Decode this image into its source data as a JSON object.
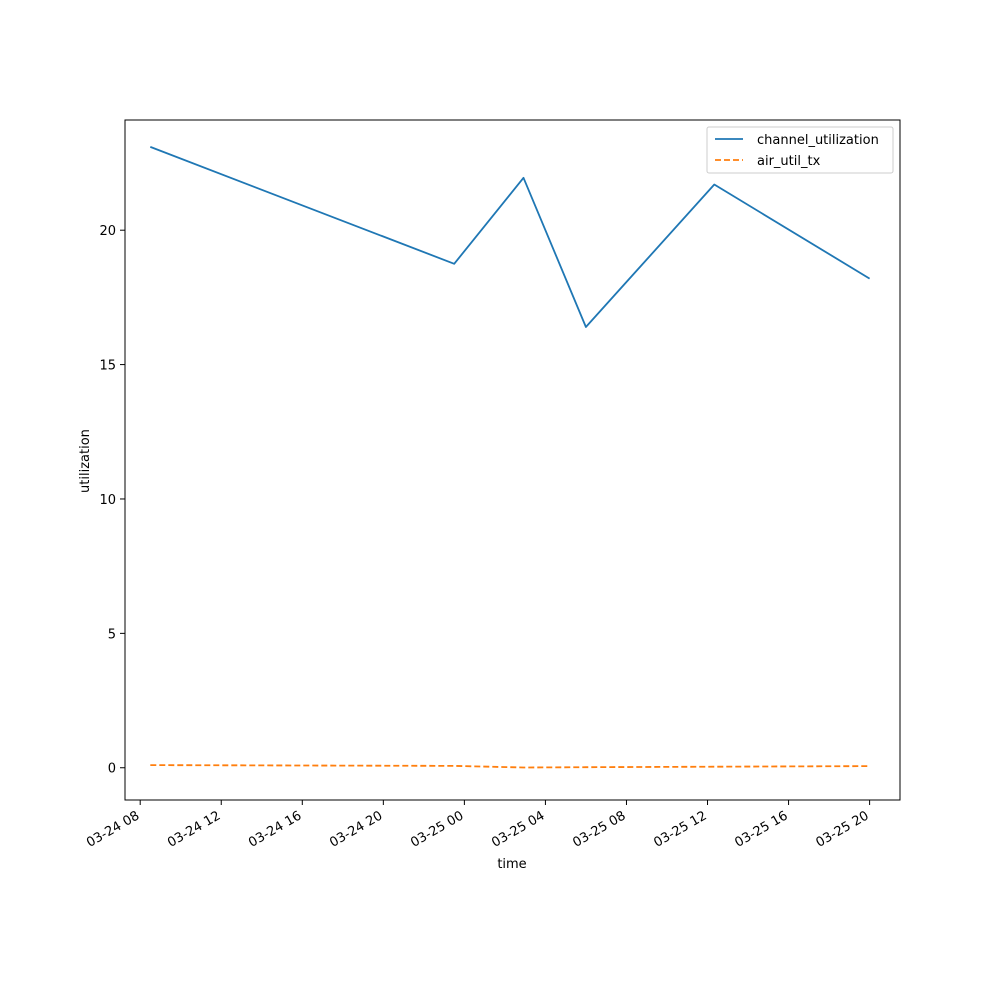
{
  "chart_data": {
    "type": "line",
    "xlabel": "time",
    "ylabel": "utilization",
    "x_axis_type": "datetime",
    "xlim": [
      "2024-03-24T07:15",
      "2024-03-25T21:30"
    ],
    "ylim": [
      -1.2,
      24.1
    ],
    "yticks": [
      0,
      5,
      10,
      15,
      20
    ],
    "xticks": [
      {
        "t": "2024-03-24T08:00",
        "label": "03-24 08"
      },
      {
        "t": "2024-03-24T12:00",
        "label": "03-24 12"
      },
      {
        "t": "2024-03-24T16:00",
        "label": "03-24 16"
      },
      {
        "t": "2024-03-24T20:00",
        "label": "03-24 20"
      },
      {
        "t": "2024-03-25T00:00",
        "label": "03-25 00"
      },
      {
        "t": "2024-03-25T04:00",
        "label": "03-25 04"
      },
      {
        "t": "2024-03-25T08:00",
        "label": "03-25 08"
      },
      {
        "t": "2024-03-25T12:00",
        "label": "03-25 12"
      },
      {
        "t": "2024-03-25T16:00",
        "label": "03-25 16"
      },
      {
        "t": "2024-03-25T20:00",
        "label": "03-25 20"
      }
    ],
    "grid": false,
    "legend_position": "top-right",
    "series": [
      {
        "name": "channel_utilization",
        "color": "#1f77b4",
        "style": "solid",
        "points": [
          {
            "x": "2024-03-24T08:30",
            "y": 23.1
          },
          {
            "x": "2024-03-24T23:30",
            "y": 18.75
          },
          {
            "x": "2024-03-25T02:55",
            "y": 21.95
          },
          {
            "x": "2024-03-25T06:00",
            "y": 16.4
          },
          {
            "x": "2024-03-25T12:20",
            "y": 21.7
          },
          {
            "x": "2024-03-25T20:00",
            "y": 18.2
          }
        ]
      },
      {
        "name": "air_util_tx",
        "color": "#ff7f0e",
        "style": "dashed",
        "points": [
          {
            "x": "2024-03-24T08:30",
            "y": 0.1
          },
          {
            "x": "2024-03-24T23:30",
            "y": 0.07
          },
          {
            "x": "2024-03-25T02:55",
            "y": 0.01
          },
          {
            "x": "2024-03-25T06:00",
            "y": 0.02
          },
          {
            "x": "2024-03-25T12:20",
            "y": 0.04
          },
          {
            "x": "2024-03-25T20:00",
            "y": 0.06
          }
        ]
      }
    ]
  }
}
